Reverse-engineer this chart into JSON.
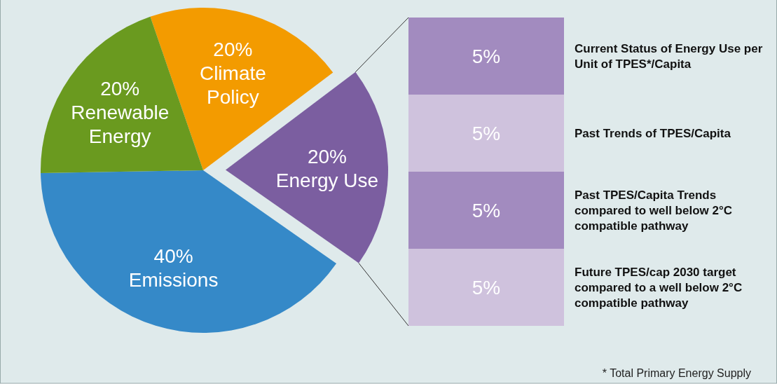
{
  "chart_data": [
    {
      "type": "pie",
      "categories": [
        "Climate Policy",
        "Energy Use",
        "Emissions",
        "Renewable Energy"
      ],
      "values": [
        20,
        20,
        40,
        20
      ],
      "value_labels": [
        "20%",
        "20%",
        "40%",
        "20%"
      ],
      "colors": [
        "#f39b00",
        "#7b5ea0",
        "#3589c8",
        "#6a9a1f"
      ]
    },
    {
      "type": "bar",
      "stacked": true,
      "categories": [
        null
      ],
      "annotations": [
        "* Total Primary Energy Supply"
      ],
      "series": [
        {
          "name": "Future TPES/cap 2030 target compared to a well below 2°C compatible pathway",
          "color": "#cfc2dd",
          "values": [
            5
          ],
          "value_labels": [
            "5%"
          ]
        },
        {
          "name": "Past TPES/Capita Trends compared to well below 2°C compatible pathway",
          "color": "#a28bbf",
          "values": [
            5
          ],
          "value_labels": [
            "5%"
          ]
        },
        {
          "name": "Past Trends of TPES/Capita",
          "color": "#cfc2dd",
          "values": [
            5
          ],
          "value_labels": [
            "5%"
          ]
        },
        {
          "name": "Current Status of Energy Use per Unit of TPES*/Capita",
          "color": "#a28bbf",
          "values": [
            5
          ],
          "value_labels": [
            "5%"
          ]
        }
      ]
    }
  ]
}
